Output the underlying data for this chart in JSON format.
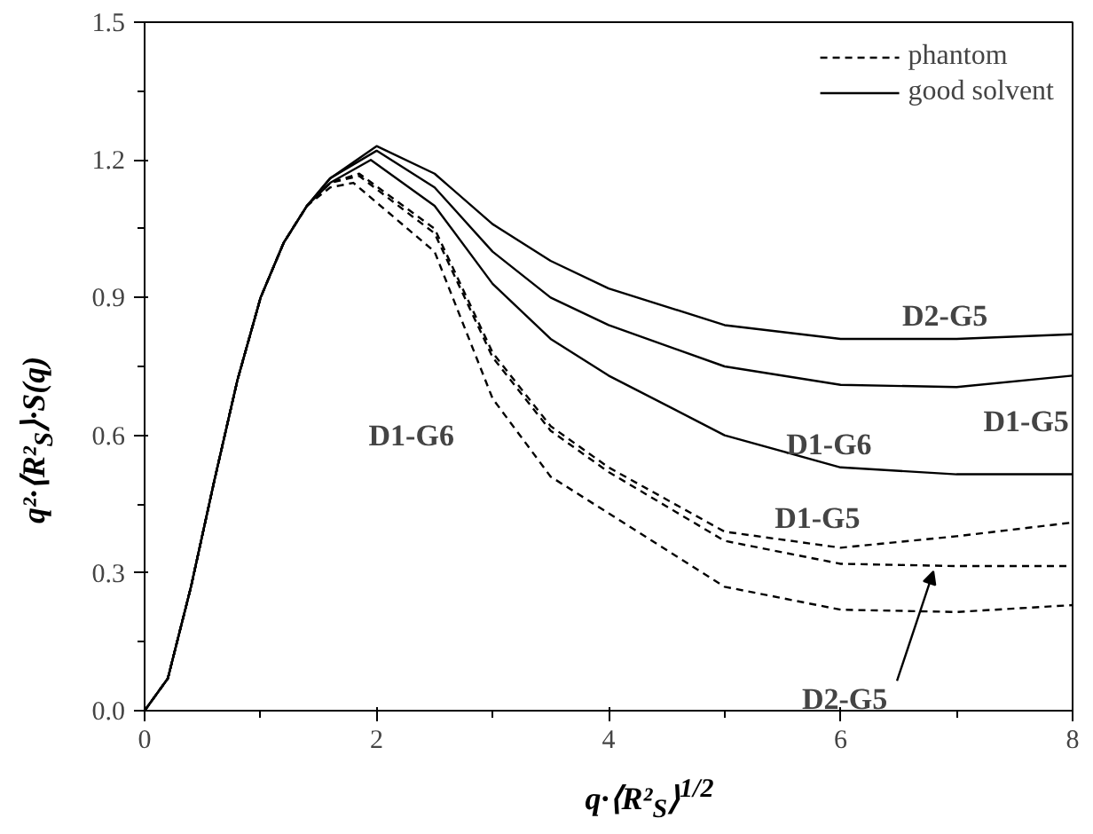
{
  "chart_data": {
    "type": "line",
    "xlabel": "q·⟨R²$_{S}$⟩$^{1/2}$",
    "ylabel": "q²·⟨R²$_{S}$⟩·S(q)",
    "xlim": [
      0,
      8
    ],
    "xticks": [
      0,
      2,
      4,
      6,
      8
    ],
    "ylim": [
      0,
      1.5
    ],
    "yticks": [
      {
        "value": 0,
        "label": "0.0"
      },
      0.3,
      0.6,
      0.9,
      1.2,
      1.5
    ],
    "grid": false,
    "legend": "top right",
    "series": [
      {
        "name": "phantom",
        "color": "#000000",
        "line_style": "dashed",
        "x": [
          0,
          0.2,
          0.4,
          0.6,
          0.8,
          1.0,
          1.2,
          1.4,
          1.6,
          1.85,
          2.5,
          3.0,
          3.5,
          4.0,
          5.0,
          6.0,
          7.0,
          8.0
        ],
        "values": [
          0,
          0.07,
          0.27,
          0.5,
          0.72,
          0.9,
          1.02,
          1.1,
          1.15,
          1.17,
          1.05,
          0.78,
          0.62,
          0.53,
          0.39,
          0.355,
          0.38,
          0.41
        ]
      },
      {
        "color": "#000000",
        "line_style": "dashed",
        "x": [
          0,
          0.2,
          0.4,
          0.6,
          0.8,
          1.0,
          1.2,
          1.4,
          1.6,
          1.85,
          2.5,
          3.0,
          3.5,
          4.0,
          5.0,
          6.0,
          7.0,
          8.0
        ],
        "values": [
          0,
          0.07,
          0.27,
          0.5,
          0.72,
          0.9,
          1.02,
          1.1,
          1.15,
          1.165,
          1.04,
          0.77,
          0.61,
          0.52,
          0.37,
          0.32,
          0.315,
          0.315
        ]
      },
      {
        "color": "#000000",
        "line_style": "dashed",
        "x": [
          0,
          0.2,
          0.4,
          0.6,
          0.8,
          1.0,
          1.2,
          1.4,
          1.6,
          1.8,
          2.5,
          3.0,
          3.5,
          4.0,
          5.0,
          6.0,
          7.0,
          8.0
        ],
        "values": [
          0,
          0.07,
          0.27,
          0.5,
          0.72,
          0.9,
          1.02,
          1.1,
          1.14,
          1.15,
          1.0,
          0.68,
          0.51,
          0.43,
          0.27,
          0.22,
          0.215,
          0.23
        ]
      },
      {
        "name": "good solvent",
        "color": "#000000",
        "line_style": "solid",
        "x": [
          0,
          0.2,
          0.4,
          0.6,
          0.8,
          1.0,
          1.2,
          1.4,
          1.6,
          2.0,
          2.5,
          3.0,
          3.5,
          4.0,
          5.0,
          6.0,
          7.0,
          8.0
        ],
        "values": [
          0,
          0.07,
          0.27,
          0.5,
          0.72,
          0.9,
          1.02,
          1.1,
          1.16,
          1.23,
          1.17,
          1.06,
          0.98,
          0.92,
          0.84,
          0.81,
          0.81,
          0.82
        ]
      },
      {
        "color": "#000000",
        "line_style": "solid",
        "x": [
          0,
          0.2,
          0.4,
          0.6,
          0.8,
          1.0,
          1.2,
          1.4,
          1.6,
          2.0,
          2.5,
          3.0,
          3.5,
          4.0,
          5.0,
          6.0,
          7.0,
          8.0
        ],
        "values": [
          0,
          0.07,
          0.27,
          0.5,
          0.72,
          0.9,
          1.02,
          1.1,
          1.16,
          1.22,
          1.14,
          1.0,
          0.9,
          0.84,
          0.75,
          0.71,
          0.705,
          0.73
        ]
      },
      {
        "color": "#000000",
        "line_style": "solid",
        "x": [
          0,
          0.2,
          0.4,
          0.6,
          0.8,
          1.0,
          1.2,
          1.4,
          1.6,
          1.95,
          2.5,
          3.0,
          3.5,
          4.0,
          5.0,
          6.0,
          7.0,
          8.0
        ],
        "values": [
          0,
          0.07,
          0.27,
          0.5,
          0.72,
          0.9,
          1.02,
          1.1,
          1.15,
          1.2,
          1.1,
          0.93,
          0.81,
          0.73,
          0.6,
          0.53,
          0.515,
          0.515
        ]
      }
    ],
    "annotations": [
      "D2-G5",
      "D1-G5",
      "D1-G6",
      "D1-G5",
      {
        "text": "D2-G5",
        "x": 6.8,
        "y": 0.315
      },
      "D1-G6"
    ]
  }
}
